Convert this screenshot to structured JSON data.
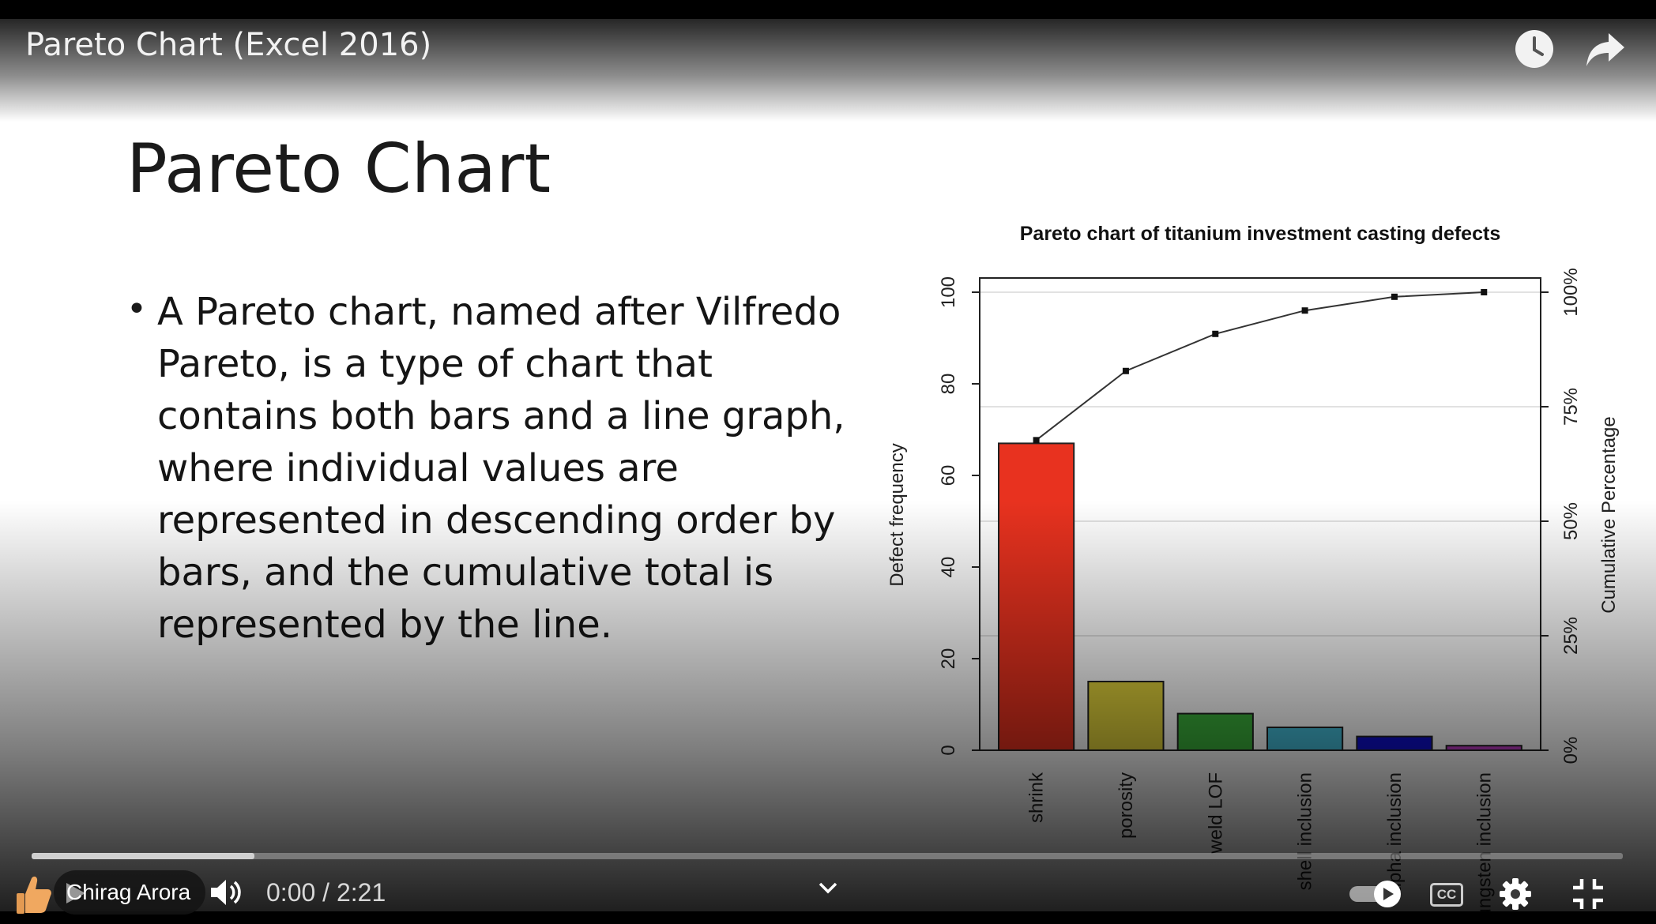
{
  "video": {
    "title": "Pareto Chart (Excel 2016)",
    "channel": "Chirag Arora",
    "time_current": "0:00",
    "time_total": "2:21",
    "time_separator": "/",
    "played_fraction": 0.0,
    "buffered_fraction": 0.14,
    "top_icons": [
      "clock-icon",
      "share-arrow-icon"
    ],
    "control_icons": [
      "like-icon",
      "play-icon",
      "volume-icon",
      "chevron-down-icon",
      "autoplay-toggle",
      "cc-icon",
      "settings-icon",
      "fullscreen-exit-icon"
    ],
    "cc_label": "CC"
  },
  "slide": {
    "title": "Pareto Chart",
    "bullet": "A Pareto chart, named after Vilfredo Pareto, is a type of chart that contains both bars and a line graph, where individual values are represented in descending order by bars, and the cumulative total is represented by the line."
  },
  "chart_data": {
    "type": "bar",
    "title": "Pareto chart of titanium investment casting defects",
    "xlabel": "",
    "ylabel": "Defect frequency",
    "y2label": "Cumulative Percentage",
    "categories": [
      "shrink",
      "porosity",
      "weld LOF",
      "shell inclusion",
      "alpha inclusion",
      "tungsten inclusion"
    ],
    "values": [
      67,
      15,
      8,
      5,
      3,
      1
    ],
    "cumulative_percent": [
      67.7,
      82.8,
      90.9,
      96.0,
      99.0,
      100.0
    ],
    "ylim": [
      0,
      100
    ],
    "y_ticks": [
      "0",
      "20",
      "40",
      "60",
      "80",
      "100"
    ],
    "y2_ticks": [
      "0%",
      "25%",
      "50%",
      "75%",
      "100%"
    ],
    "bar_colors": [
      "#e8321f",
      "#e2d33b",
      "#3cb33c",
      "#45bfdb",
      "#1010d0",
      "#c03cc8"
    ],
    "grid": true,
    "line_marker": "square"
  }
}
